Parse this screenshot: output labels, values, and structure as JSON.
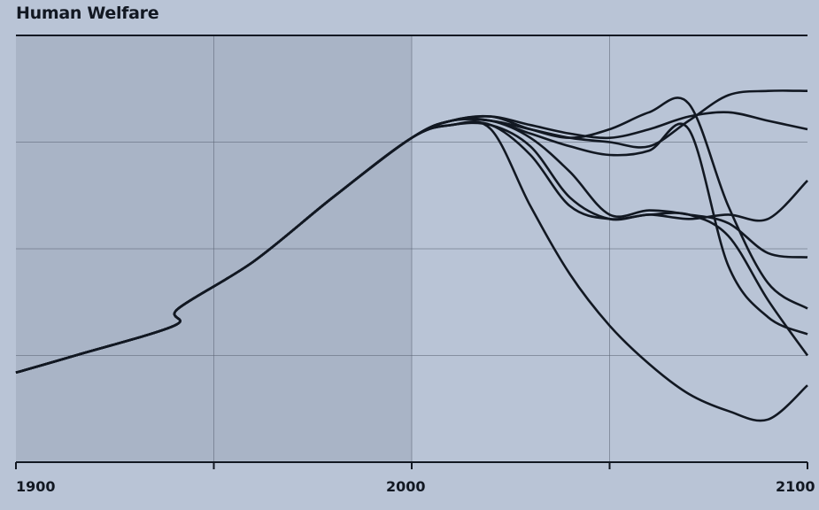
{
  "chart_data": {
    "type": "line",
    "title": "Human Welfare",
    "xlabel": "",
    "ylabel": "",
    "x_tick_labels": [
      "1900",
      "2000",
      "2100"
    ],
    "xlim": [
      1900,
      2100
    ],
    "ylim": [
      0,
      1
    ],
    "grid": true,
    "legend": "none",
    "colors": {
      "background": "#b9c4d6",
      "shaded_region": "#a9b4c6",
      "line": "#121822",
      "grid": "#5c6575"
    },
    "x": [
      1900,
      1915,
      1940,
      1941,
      1960,
      1980,
      2000,
      2010,
      2020,
      2030,
      2040,
      2050,
      2060,
      2070,
      2080,
      2090,
      2100
    ],
    "series": [
      {
        "values": [
          0.21,
          0.25,
          0.32,
          0.36,
          0.47,
          0.62,
          0.76,
          0.79,
          0.78,
          0.6,
          0.44,
          0.32,
          0.23,
          0.16,
          0.12,
          0.1,
          0.18
        ]
      },
      {
        "values": [
          0.21,
          0.25,
          0.32,
          0.36,
          0.47,
          0.62,
          0.76,
          0.8,
          0.8,
          0.78,
          0.76,
          0.75,
          0.74,
          0.8,
          0.86,
          0.87,
          0.87
        ]
      },
      {
        "values": [
          0.21,
          0.25,
          0.32,
          0.36,
          0.47,
          0.62,
          0.76,
          0.8,
          0.81,
          0.79,
          0.77,
          0.76,
          0.78,
          0.81,
          0.82,
          0.8,
          0.78
        ]
      },
      {
        "values": [
          0.21,
          0.25,
          0.32,
          0.36,
          0.47,
          0.62,
          0.76,
          0.8,
          0.81,
          0.78,
          0.76,
          0.78,
          0.82,
          0.84,
          0.6,
          0.42,
          0.36
        ]
      },
      {
        "values": [
          0.21,
          0.25,
          0.32,
          0.36,
          0.47,
          0.62,
          0.76,
          0.8,
          0.8,
          0.77,
          0.74,
          0.72,
          0.73,
          0.78,
          0.46,
          0.34,
          0.3
        ]
      },
      {
        "values": [
          0.21,
          0.25,
          0.32,
          0.36,
          0.47,
          0.62,
          0.76,
          0.8,
          0.8,
          0.76,
          0.68,
          0.58,
          0.59,
          0.58,
          0.56,
          0.49,
          0.48
        ]
      },
      {
        "values": [
          0.21,
          0.25,
          0.32,
          0.36,
          0.47,
          0.62,
          0.76,
          0.79,
          0.79,
          0.74,
          0.62,
          0.57,
          0.58,
          0.57,
          0.58,
          0.57,
          0.66
        ]
      },
      {
        "values": [
          0.21,
          0.25,
          0.32,
          0.36,
          0.47,
          0.62,
          0.76,
          0.79,
          0.79,
          0.72,
          0.6,
          0.57,
          0.58,
          0.58,
          0.53,
          0.38,
          0.25
        ]
      }
    ]
  }
}
